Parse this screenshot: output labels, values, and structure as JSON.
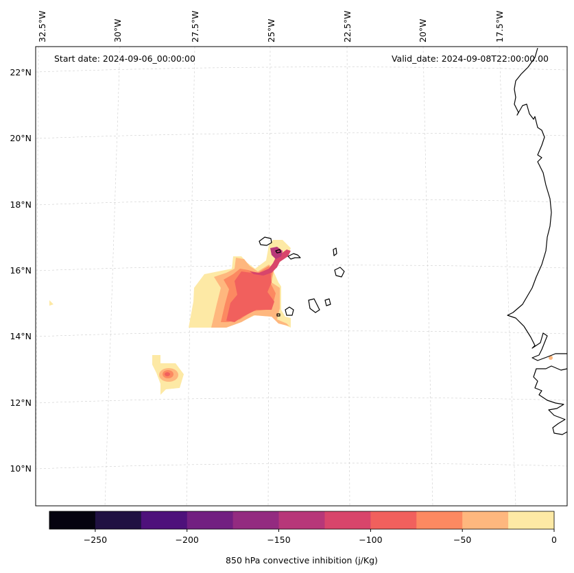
{
  "annotations": {
    "start_date": "Start date: 2024-09-06_00:00:00",
    "valid_date": "Valid_date: 2024-09-08T22:00:00.00"
  },
  "longitude_labels": [
    "32.5°W",
    "30°W",
    "27.5°W",
    "25°W",
    "22.5°W",
    "20°W",
    "17.5°W"
  ],
  "latitude_labels": [
    "22°N",
    "20°N",
    "18°N",
    "16°N",
    "14°N",
    "12°N",
    "10°N"
  ],
  "colorbar": {
    "label": "850 hPa convective inhibition (j/Kg)",
    "tick_labels": [
      "−250",
      "−200",
      "−150",
      "−100",
      "−50",
      "0"
    ],
    "bin_colors": [
      "#05030f",
      "#201142",
      "#4e117b",
      "#721f81",
      "#932b80",
      "#b73779",
      "#d8456b",
      "#f1605d",
      "#fc8961",
      "#feb77e",
      "#fde9a5"
    ]
  },
  "colors": {
    "coastline": "#000000",
    "gridline": "#cccccc",
    "band_0_to_25": "#fde9a5",
    "band_25_to_50": "#feb77e",
    "band_50_to_75": "#fc8961",
    "band_75_to_100": "#f1605d",
    "band_100_to_125": "#d8456b",
    "band_125_to_150": "#b73779"
  }
}
